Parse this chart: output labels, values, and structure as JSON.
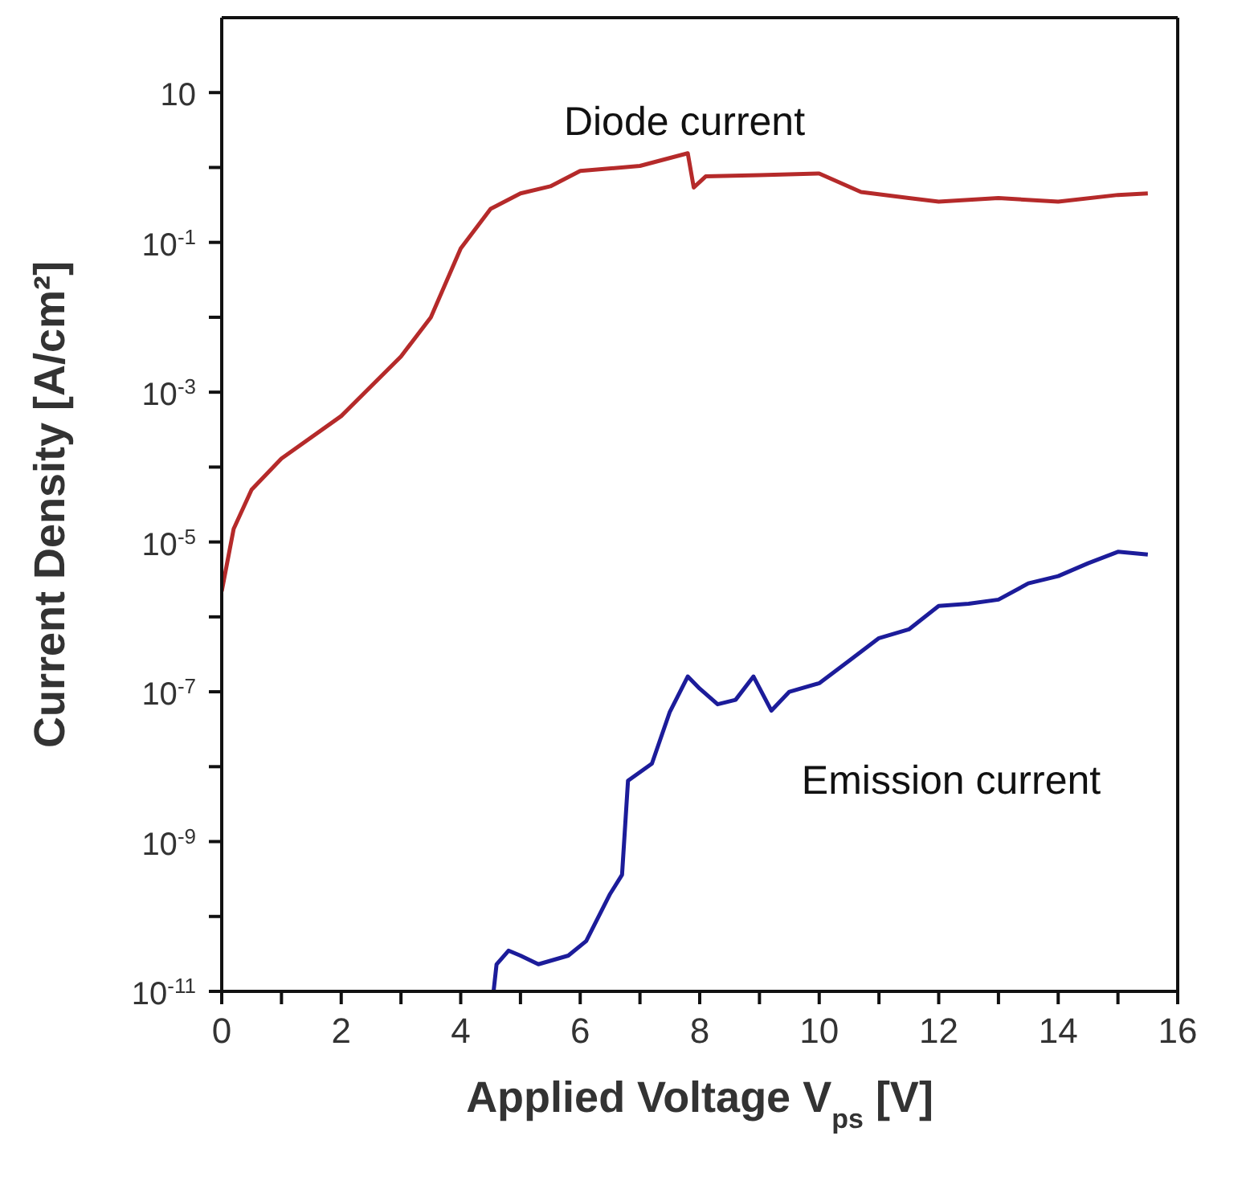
{
  "chart_data": {
    "type": "line",
    "xlabel": "Applied Voltage V$_{ps}$ [V]",
    "ylabel": "Current Density [A/cm²]",
    "log": true,
    "xlim": [
      0,
      16
    ],
    "xticks": [
      0,
      {
        "value": 1,
        "label": null
      },
      2,
      {
        "value": 3,
        "label": null
      },
      4,
      {
        "value": 5,
        "label": null
      },
      6,
      {
        "value": 7,
        "label": null
      },
      8,
      {
        "value": 9,
        "label": null
      },
      10,
      {
        "value": 11,
        "label": null
      },
      12,
      {
        "value": 13,
        "label": null
      },
      14,
      {
        "value": 15,
        "label": null
      },
      16
    ],
    "ylim": [
      1e-11,
      100
    ],
    "yticks": [
      {
        "value": 1e-11,
        "label": "10$^{-11}$"
      },
      {
        "value": 1e-10,
        "label": null
      },
      {
        "value": 1e-09,
        "label": "10$^{-9}$"
      },
      {
        "value": 1e-08,
        "label": null
      },
      {
        "value": 1e-07,
        "label": "10$^{-7}$"
      },
      {
        "value": 1e-06,
        "label": null
      },
      {
        "value": 1e-05,
        "label": "10$^{-5}$"
      },
      {
        "value": 0.0001,
        "label": null
      },
      {
        "value": 0.001,
        "label": "10$^{-3}$"
      },
      {
        "value": 0.01,
        "label": null
      },
      {
        "value": 0.1,
        "label": "10$^{-1}$"
      },
      {
        "value": 1,
        "label": null
      },
      10
    ],
    "series": [
      {
        "name": "Diode current",
        "color": "#b52a2a",
        "x": [
          0,
          0.2,
          0.5,
          1,
          2,
          3,
          3.5,
          4,
          4.5,
          5,
          5.5,
          6,
          7,
          7.8,
          7.9,
          8.1,
          9,
          10,
          10.7,
          11.5,
          12,
          13,
          14,
          15,
          15.5
        ],
        "values": [
          2.2e-06,
          1.5e-05,
          5e-05,
          0.00013,
          0.00048,
          0.003,
          0.01,
          0.083,
          0.28,
          0.45,
          0.56,
          0.9,
          1.05,
          1.55,
          0.54,
          0.76,
          0.79,
          0.83,
          0.47,
          0.39,
          0.35,
          0.39,
          0.35,
          0.43,
          0.45
        ]
      },
      {
        "name": "Emission current",
        "color": "#1c1c9a",
        "x": [
          4.55,
          4.6,
          4.8,
          5,
          5.3,
          5.8,
          6.1,
          6.5,
          6.7,
          6.8,
          7.2,
          7.5,
          7.8,
          8,
          8.3,
          8.6,
          8.9,
          9.2,
          9.5,
          10,
          10.5,
          11,
          11.5,
          12,
          12.5,
          13,
          13.5,
          14,
          14.5,
          15,
          15.5
        ],
        "values": [
          1e-11,
          2.3e-11,
          3.5e-11,
          3e-11,
          2.3e-11,
          3e-11,
          4.7e-11,
          2e-10,
          3.6e-10,
          6.5e-09,
          1.1e-08,
          5.4e-08,
          1.6e-07,
          1.1e-07,
          6.8e-08,
          7.8e-08,
          1.6e-07,
          5.6e-08,
          1e-07,
          1.3e-07,
          2.6e-07,
          5.2e-07,
          6.8e-07,
          1.4e-06,
          1.5e-06,
          1.7e-06,
          2.8e-06,
          3.5e-06,
          5.2e-06,
          7.4e-06,
          6.8e-06
        ]
      }
    ]
  }
}
